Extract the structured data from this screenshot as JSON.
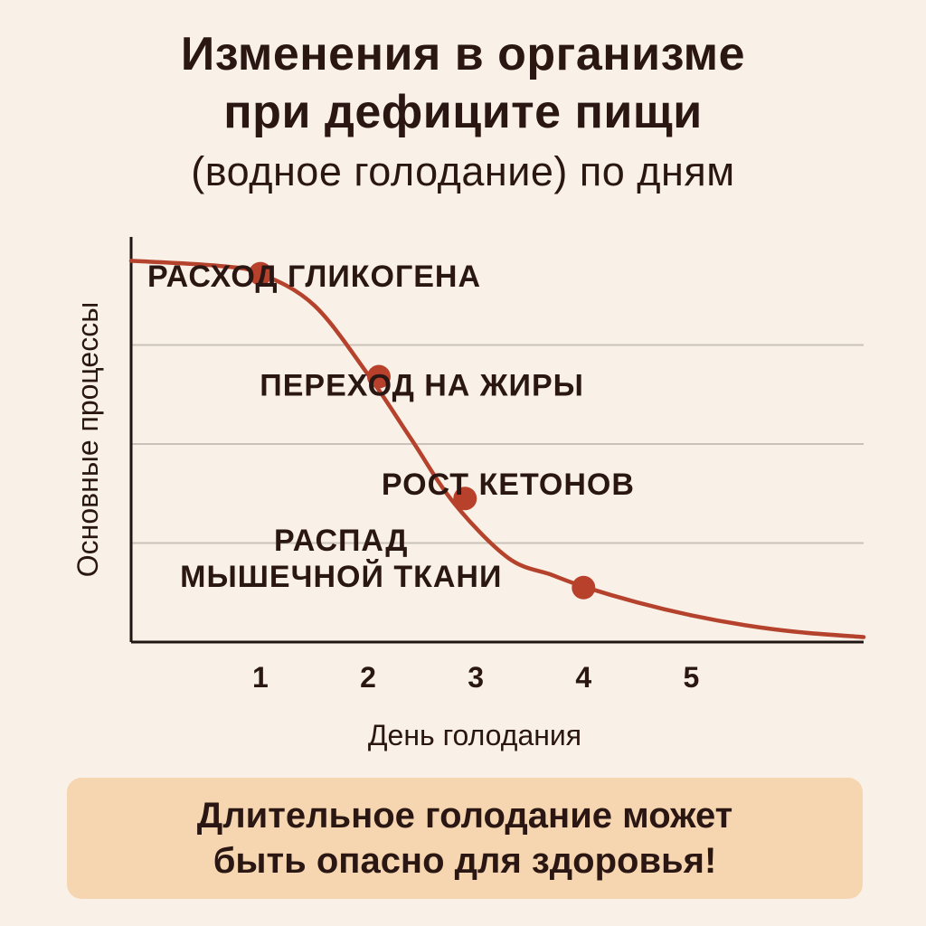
{
  "header": {
    "title_line1": "Изменения в организме",
    "title_line2": "при дефиците пищи",
    "subtitle": "(водное голодание) по дням"
  },
  "chart_data": {
    "type": "line",
    "title": "Изменения в организме при дефиците пищи",
    "subtitle": "(водное голодание) по дням",
    "xlabel": "День голодания",
    "ylabel": "Основные процессы",
    "x_ticks": [
      "1",
      "2",
      "3",
      "4",
      "5"
    ],
    "xlim": [
      -0.2,
      6.6
    ],
    "ylim": [
      0,
      4
    ],
    "grid": true,
    "colors": {
      "line": "#b5422c",
      "marker": "#b8412c",
      "grid": "#c9c2ba",
      "axis": "#1f1512"
    },
    "series": [
      {
        "curve": [
          [
            -0.2,
            3.85
          ],
          [
            0.6,
            3.8
          ],
          [
            1.0,
            3.72
          ],
          [
            1.5,
            3.4
          ],
          [
            2.0,
            2.7
          ],
          [
            2.4,
            2.05
          ],
          [
            2.8,
            1.4
          ],
          [
            3.3,
            0.85
          ],
          [
            3.7,
            0.68
          ],
          [
            4.0,
            0.56
          ],
          [
            4.5,
            0.4
          ],
          [
            5.0,
            0.27
          ],
          [
            5.5,
            0.17
          ],
          [
            6.0,
            0.1
          ],
          [
            6.6,
            0.05
          ]
        ],
        "markers": [
          {
            "x": 1.0,
            "y": 3.72,
            "label": "РАСХОД ГЛИКОГЕНА"
          },
          {
            "x": 2.1,
            "y": 2.68,
            "label": "ПЕРЕХОД НА ЖИРЫ"
          },
          {
            "x": 2.9,
            "y": 1.45,
            "label": "РОСТ КЕТОНОВ"
          },
          {
            "x": 4.0,
            "y": 0.55,
            "label": "РАСПАД МЫШЕЧНОЙ ТКАНИ"
          }
        ]
      }
    ],
    "phase_labels": [
      {
        "lines": [
          "РАСХОД ГЛИКОГЕНА"
        ],
        "x": 1.5,
        "y": 3.7
      },
      {
        "lines": [
          "ПЕРЕХОД НА ЖИРЫ"
        ],
        "x": 2.5,
        "y": 2.6
      },
      {
        "lines": [
          "РОСТ КЕТОНОВ"
        ],
        "x": 3.3,
        "y": 1.6
      },
      {
        "lines": [
          "РАСПАД",
          "МЫШЕЧНОЙ ТКАНИ"
        ],
        "x": 1.75,
        "y": 0.85
      }
    ]
  },
  "warning": {
    "line1": "Длительное голодание может",
    "line2": "быть опасно для здоровья!"
  }
}
